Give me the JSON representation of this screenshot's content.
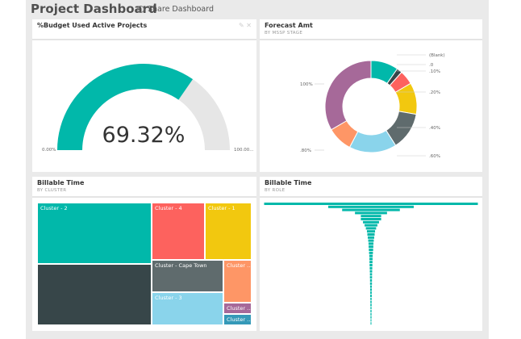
{
  "header": {
    "title": "Project Dashboard",
    "share_label": "Share Dashboard"
  },
  "tiles": {
    "gauge": {
      "title": "%Budget Used Active Projects",
      "value_label": "69.32%",
      "value": 69.32,
      "min_label": "0.00%",
      "max_label": "100.00...",
      "color": "#01b8aa",
      "track_color": "#e6e6e6"
    },
    "forecast": {
      "title": "Forecast Amt",
      "subtitle": "BY MSSP STAGE"
    },
    "treemap": {
      "title": "Billable Time",
      "subtitle": "BY CLUSTER"
    },
    "funnel": {
      "title": "Billable Time",
      "subtitle": "BY ROLE",
      "color": "#01b8aa"
    }
  },
  "chart_data": [
    {
      "type": "pie",
      "name": "Forecast Amt by MSSP Stage",
      "slices": [
        {
          "label": "(Blank)",
          "value": 9.7,
          "color": "#01b8aa"
        },
        {
          "label": ".0",
          "value": 1.9,
          "color": "#374649"
        },
        {
          "label": ".10%",
          "value": 5,
          "color": "#fd625e"
        },
        {
          "label": ".20%",
          "value": 11.1,
          "color": "#f2c80f"
        },
        {
          "label": ".40%",
          "value": 13.3,
          "color": "#5f6b6d"
        },
        {
          "label": ".60%",
          "value": 16.7,
          "color": "#8ad4eb"
        },
        {
          "label": ".80%",
          "value": 8.9,
          "color": "#fe9666"
        },
        {
          "label": "100%",
          "value": 33.4,
          "color": "#a66999"
        }
      ]
    },
    {
      "type": "treemap",
      "name": "Billable Time by Cluster",
      "items": [
        {
          "label": "Cluster - 2",
          "color": "#01b8aa"
        },
        {
          "label": "",
          "color": "#374649"
        },
        {
          "label": "Cluster - 4",
          "color": "#fd625e"
        },
        {
          "label": "Cluster - 1",
          "color": "#f2c80f"
        },
        {
          "label": "Cluster - Cape Town",
          "color": "#5f6b6d"
        },
        {
          "label": "Cluster - 3",
          "color": "#8ad4eb"
        },
        {
          "label": "Cluster ...",
          "color": "#fe9666"
        },
        {
          "label": "Cluster ...",
          "color": "#a66999"
        },
        {
          "label": "Cluster ...",
          "color": "#3599b8"
        }
      ]
    },
    {
      "type": "bar",
      "name": "Billable Time by Role (funnel)",
      "values": [
        100,
        40,
        27,
        15,
        9.5,
        9.5,
        7.5,
        6,
        4.8,
        3.8,
        3.4,
        3,
        2.6,
        2.3,
        2.2,
        2,
        1.8,
        1.6,
        1.5,
        1.4,
        1.3,
        1.2,
        1.1,
        1,
        1,
        0.9,
        0.9,
        0.8,
        0.8,
        0.7,
        0.7,
        0.6,
        0.6,
        0.6,
        0.5,
        0.5,
        0.5,
        0.5,
        0.4,
        0.4
      ]
    }
  ]
}
